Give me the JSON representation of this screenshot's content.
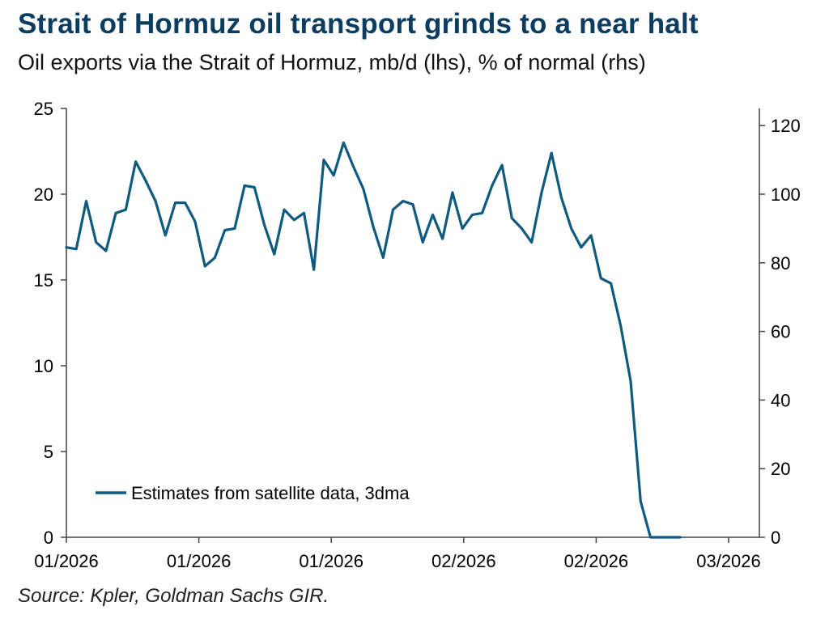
{
  "header": {
    "title": "Strait of Hormuz oil transport grinds to a near halt",
    "subtitle": "Oil exports via the Strait of Hormuz, mb/d (lhs), % of normal (rhs)"
  },
  "footer": {
    "source": "Source: Kpler, Goldman Sachs GIR."
  },
  "colors": {
    "series": "#0f5a7f",
    "axis": "#444444"
  },
  "chart_data": {
    "type": "line",
    "y_left": {
      "min": 0,
      "max": 25,
      "ticks": [
        "0",
        "5",
        "10",
        "15",
        "20",
        "25"
      ]
    },
    "y_right": {
      "min": 0,
      "max": 125,
      "ticks": [
        "0",
        "20",
        "40",
        "60",
        "80",
        "100",
        "120"
      ]
    },
    "x_ticks": [
      "01/2026",
      "01/2026",
      "01/2026",
      "02/2026",
      "02/2026",
      "03/2026"
    ],
    "x_range": [
      0,
      70
    ],
    "legend_position": "bottom-left",
    "grid": false,
    "series": [
      {
        "name": "Estimates from satellite data, 3dma",
        "axis": "left",
        "x": [
          0,
          1,
          2,
          3,
          4,
          5,
          6,
          7,
          8,
          9,
          10,
          11,
          12,
          13,
          14,
          15,
          16,
          17,
          18,
          19,
          20,
          21,
          22,
          23,
          24,
          25,
          26,
          27,
          28,
          29,
          30,
          31,
          32,
          33,
          34,
          35,
          36,
          37,
          38,
          39,
          40,
          41,
          42,
          43,
          44,
          45,
          46,
          47,
          48,
          49,
          50,
          51,
          52,
          53,
          54,
          55,
          56,
          57,
          58,
          59,
          60,
          61,
          62
        ],
        "values": [
          16.9,
          16.8,
          19.6,
          17.2,
          16.7,
          18.9,
          19.1,
          21.9,
          20.8,
          19.6,
          17.6,
          19.5,
          19.5,
          18.4,
          15.8,
          16.3,
          17.9,
          18.0,
          20.5,
          20.4,
          18.2,
          16.5,
          19.1,
          18.5,
          18.9,
          15.6,
          22.0,
          21.1,
          23.0,
          21.6,
          20.3,
          18.1,
          16.3,
          19.1,
          19.6,
          19.4,
          17.2,
          18.8,
          17.4,
          20.1,
          18.0,
          18.8,
          18.9,
          20.5,
          21.7,
          18.6,
          18.0,
          17.2,
          20.1,
          22.4,
          19.8,
          18.0,
          16.9,
          17.6,
          15.1,
          14.8,
          12.3,
          9.1,
          2.1,
          0.0,
          0.0,
          0.0,
          0.0
        ]
      }
    ]
  }
}
